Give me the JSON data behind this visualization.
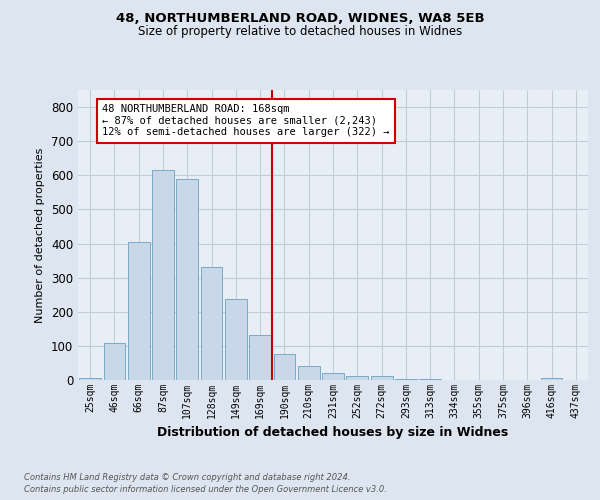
{
  "title1": "48, NORTHUMBERLAND ROAD, WIDNES, WA8 5EB",
  "title2": "Size of property relative to detached houses in Widnes",
  "xlabel": "Distribution of detached houses by size in Widnes",
  "ylabel": "Number of detached properties",
  "categories": [
    "25sqm",
    "46sqm",
    "66sqm",
    "87sqm",
    "107sqm",
    "128sqm",
    "149sqm",
    "169sqm",
    "190sqm",
    "210sqm",
    "231sqm",
    "252sqm",
    "272sqm",
    "293sqm",
    "313sqm",
    "334sqm",
    "355sqm",
    "375sqm",
    "396sqm",
    "416sqm",
    "437sqm"
  ],
  "values": [
    5,
    107,
    405,
    615,
    590,
    330,
    238,
    133,
    75,
    42,
    20,
    12,
    12,
    3,
    3,
    1,
    0,
    0,
    0,
    7,
    0
  ],
  "bar_color": "#c8d8e8",
  "bar_edge_color": "#7aaac8",
  "vline_color": "#cc0000",
  "annotation_line1": "48 NORTHUMBERLAND ROAD: 168sqm",
  "annotation_line2": "← 87% of detached houses are smaller (2,243)",
  "annotation_line3": "12% of semi-detached houses are larger (322) →",
  "annotation_box_color": "#cc0000",
  "background_color": "#dde6f0",
  "plot_background_color": "#e8eef6",
  "grid_color": "#c0ccd8",
  "footer1": "Contains HM Land Registry data © Crown copyright and database right 2024.",
  "footer2": "Contains public sector information licensed under the Open Government Licence v3.0.",
  "ylim": [
    0,
    850
  ],
  "yticks": [
    0,
    100,
    200,
    300,
    400,
    500,
    600,
    700,
    800
  ]
}
